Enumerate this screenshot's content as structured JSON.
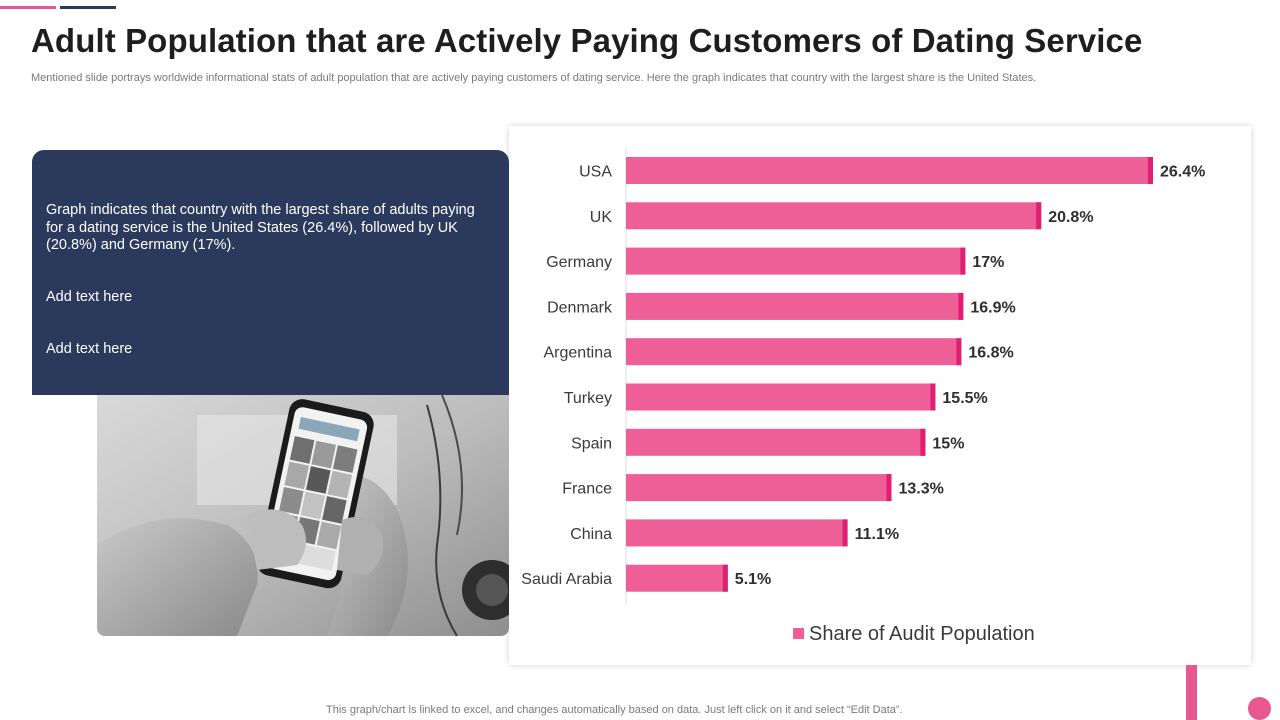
{
  "header": {
    "title": "Adult Population that are Actively Paying Customers of Dating Service",
    "subtitle": "Mentioned slide portrays worldwide informational stats of adult population that are actively paying customers of dating service. Here the graph indicates that country with the largest share is the United States."
  },
  "info_box": {
    "paragraph": "Graph indicates that country with the largest share of adults paying for a dating service is the United States (26.4%), followed by UK (20.8%) and Germany (17%).",
    "line2": "Add text here",
    "line3": "Add text here"
  },
  "footer": {
    "note": "This graph/chart is linked to excel,  and changes automatically based on data. Just left click on it and select “Edit Data”."
  },
  "colors": {
    "bar": "#ed5f96",
    "bar_cap": "#e11d74",
    "accent": "#e8578f",
    "navy": "#2b3a5c"
  },
  "chart_data": {
    "type": "bar",
    "orientation": "horizontal",
    "categories": [
      "USA",
      "UK",
      "Germany",
      "Denmark",
      "Argentina",
      "Turkey",
      "Spain",
      "France",
      "China",
      "Saudi Arabia"
    ],
    "values": [
      26.4,
      20.8,
      17,
      16.9,
      16.8,
      15.5,
      15,
      13.3,
      11.1,
      5.1
    ],
    "labels": [
      "26.4%",
      "20.8%",
      "17%",
      "16.9%",
      "16.8%",
      "15.5%",
      "15%",
      "13.3%",
      "11.1%",
      "5.1%"
    ],
    "series": [
      {
        "name": "Share of Audit Population",
        "values": [
          26.4,
          20.8,
          17,
          16.9,
          16.8,
          15.5,
          15,
          13.3,
          11.1,
          5.1
        ]
      }
    ],
    "xlim": [
      0,
      30
    ],
    "grid": false,
    "legend_position": "bottom"
  }
}
